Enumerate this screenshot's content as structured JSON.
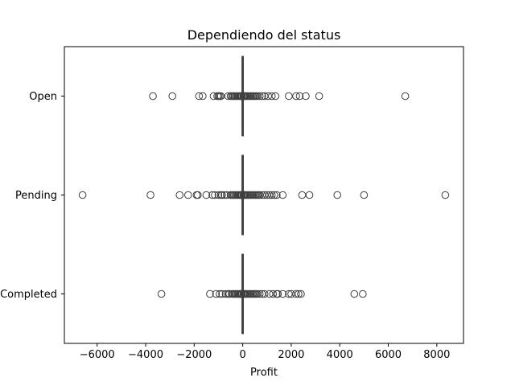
{
  "chart_data": {
    "type": "boxplot",
    "orientation": "horizontal",
    "title": "Dependiendo del status",
    "xlabel": "Profit",
    "ylabel": "",
    "xlim": [
      -7350,
      9100
    ],
    "xticks": [
      -6000,
      -4000,
      -2000,
      0,
      2000,
      4000,
      6000,
      8000
    ],
    "xtick_labels": [
      "−6000",
      "−4000",
      "−2000",
      "0",
      "2000",
      "4000",
      "6000",
      "8000"
    ],
    "grid": false,
    "colors": {
      "box_edge": "#3f3f3f",
      "outlier_edge": "#3f3f3f",
      "frame": "#000000"
    },
    "categories": [
      "Open",
      "Pending",
      "Completed"
    ],
    "boxes": [
      {
        "category": "Open",
        "q1": -20,
        "median": 0,
        "q3": 20,
        "whisker_low": -20,
        "whisker_high": 20,
        "outliers": [
          -3700,
          -2900,
          -1800,
          -1650,
          -1200,
          -1050,
          -1000,
          -950,
          -900,
          -600,
          -500,
          -450,
          -400,
          -350,
          -300,
          -250,
          -200,
          -150,
          -100,
          -80,
          -60,
          -40,
          40,
          60,
          80,
          100,
          150,
          200,
          250,
          300,
          350,
          400,
          450,
          500,
          550,
          600,
          700,
          800,
          900,
          1050,
          1200,
          1350,
          1900,
          2200,
          2350,
          2600,
          3150,
          6700
        ]
      },
      {
        "category": "Pending",
        "q1": -20,
        "median": 0,
        "q3": 20,
        "whisker_low": -20,
        "whisker_high": 20,
        "outliers": [
          -6600,
          -3800,
          -2600,
          -2250,
          -1900,
          -1850,
          -1500,
          -1250,
          -1150,
          -1000,
          -900,
          -850,
          -750,
          -650,
          -500,
          -450,
          -400,
          -350,
          -300,
          -250,
          -200,
          -150,
          -100,
          -80,
          -60,
          -40,
          40,
          60,
          80,
          100,
          150,
          200,
          250,
          300,
          350,
          400,
          450,
          500,
          550,
          600,
          650,
          700,
          800,
          900,
          1000,
          1100,
          1200,
          1300,
          1400,
          1650,
          2450,
          2750,
          3900,
          5000,
          8350
        ]
      },
      {
        "category": "Completed",
        "q1": -20,
        "median": 0,
        "q3": 20,
        "whisker_low": -20,
        "whisker_high": 20,
        "outliers": [
          -3350,
          -1350,
          -1100,
          -950,
          -850,
          -700,
          -600,
          -550,
          -450,
          -400,
          -350,
          -300,
          -250,
          -200,
          -150,
          -100,
          -80,
          -60,
          -40,
          40,
          60,
          80,
          100,
          150,
          200,
          250,
          300,
          350,
          400,
          450,
          500,
          550,
          600,
          700,
          800,
          900,
          1100,
          1250,
          1400,
          1450,
          1650,
          1900,
          2000,
          2200,
          2300,
          2400,
          4600,
          4950
        ]
      }
    ]
  }
}
